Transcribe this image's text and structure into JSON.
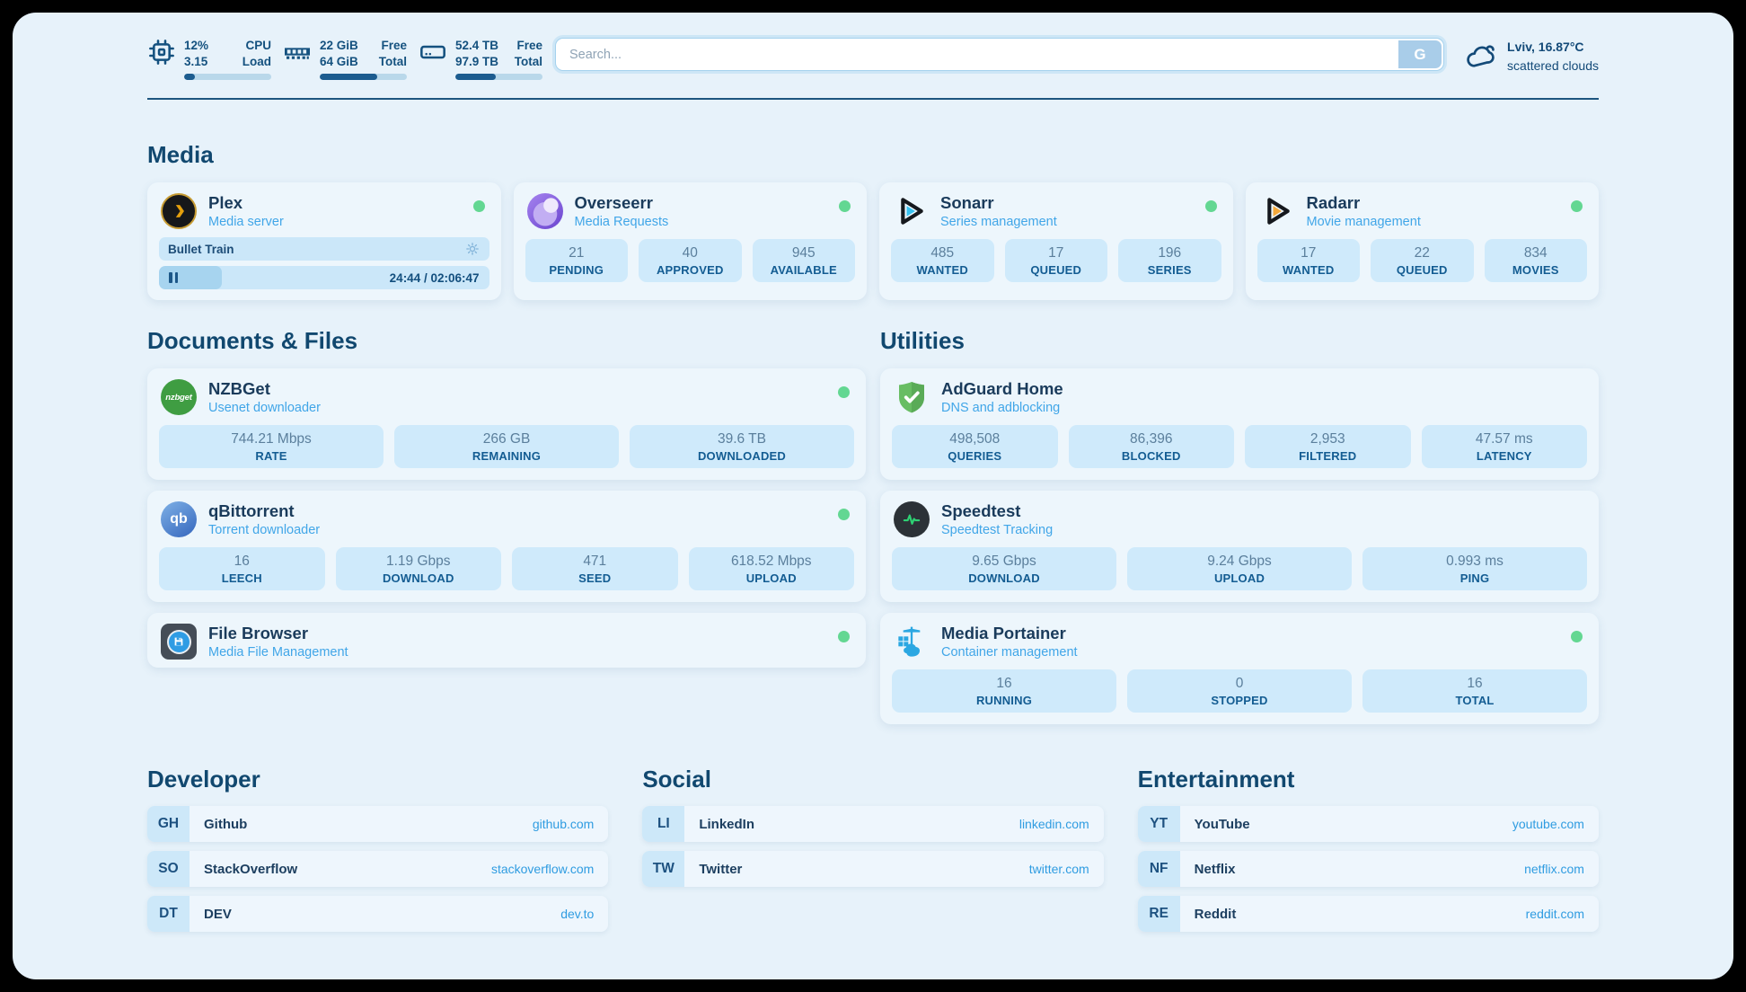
{
  "colors": {
    "accent": "#2f9ce1",
    "status_online": "#63d792",
    "header_text": "#14517f"
  },
  "header": {
    "stats": [
      {
        "icon": "cpu",
        "values": [
          "12%",
          "3.15"
        ],
        "labels": [
          "CPU",
          "Load"
        ],
        "progress_pct": 12
      },
      {
        "icon": "memory",
        "values": [
          "22 GiB",
          "64 GiB"
        ],
        "labels": [
          "Free",
          "Total"
        ],
        "progress_pct": 66
      },
      {
        "icon": "disk",
        "values": [
          "52.4 TB",
          "97.9 TB"
        ],
        "labels": [
          "Free",
          "Total"
        ],
        "progress_pct": 46
      }
    ],
    "search": {
      "placeholder": "Search...",
      "button_label": "G"
    },
    "weather": {
      "location": "Lviv, 16.87°C",
      "condition": "scattered clouds"
    }
  },
  "sections": {
    "media": {
      "title": "Media"
    },
    "documents": {
      "title": "Documents & Files"
    },
    "utilities": {
      "title": "Utilities"
    },
    "developer": {
      "title": "Developer"
    },
    "social": {
      "title": "Social"
    },
    "entertainment": {
      "title": "Entertainment"
    }
  },
  "apps": {
    "plex": {
      "name": "Plex",
      "subtitle": "Media server",
      "status": "online",
      "now_playing": "Bullet Train",
      "time_display": "24:44 / 02:06:47",
      "progress_pct": 19
    },
    "overseerr": {
      "name": "Overseerr",
      "subtitle": "Media Requests",
      "status": "online",
      "stats": [
        {
          "value": "21",
          "label": "PENDING"
        },
        {
          "value": "40",
          "label": "APPROVED"
        },
        {
          "value": "945",
          "label": "AVAILABLE"
        }
      ]
    },
    "sonarr": {
      "name": "Sonarr",
      "subtitle": "Series management",
      "status": "online",
      "stats": [
        {
          "value": "485",
          "label": "WANTED"
        },
        {
          "value": "17",
          "label": "QUEUED"
        },
        {
          "value": "196",
          "label": "SERIES"
        }
      ]
    },
    "radarr": {
      "name": "Radarr",
      "subtitle": "Movie management",
      "status": "online",
      "stats": [
        {
          "value": "17",
          "label": "WANTED"
        },
        {
          "value": "22",
          "label": "QUEUED"
        },
        {
          "value": "834",
          "label": "MOVIES"
        }
      ]
    },
    "nzbget": {
      "name": "NZBGet",
      "subtitle": "Usenet downloader",
      "status": "online",
      "icon_label": "nzbget",
      "stats": [
        {
          "value": "744.21 Mbps",
          "label": "RATE"
        },
        {
          "value": "266 GB",
          "label": "REMAINING"
        },
        {
          "value": "39.6 TB",
          "label": "DOWNLOADED"
        }
      ]
    },
    "qbittorrent": {
      "name": "qBittorrent",
      "subtitle": "Torrent downloader",
      "status": "online",
      "icon_label": "qb",
      "stats": [
        {
          "value": "16",
          "label": "LEECH"
        },
        {
          "value": "1.19 Gbps",
          "label": "DOWNLOAD"
        },
        {
          "value": "471",
          "label": "SEED"
        },
        {
          "value": "618.52 Mbps",
          "label": "UPLOAD"
        }
      ]
    },
    "filebrowser": {
      "name": "File Browser",
      "subtitle": "Media File Management",
      "status": "online"
    },
    "adguard": {
      "name": "AdGuard Home",
      "subtitle": "DNS and adblocking",
      "stats": [
        {
          "value": "498,508",
          "label": "QUERIES"
        },
        {
          "value": "86,396",
          "label": "BLOCKED"
        },
        {
          "value": "2,953",
          "label": "FILTERED"
        },
        {
          "value": "47.57 ms",
          "label": "LATENCY"
        }
      ]
    },
    "speedtest": {
      "name": "Speedtest",
      "subtitle": "Speedtest Tracking",
      "stats": [
        {
          "value": "9.65 Gbps",
          "label": "DOWNLOAD"
        },
        {
          "value": "9.24 Gbps",
          "label": "UPLOAD"
        },
        {
          "value": "0.993 ms",
          "label": "PING"
        }
      ]
    },
    "portainer": {
      "name": "Media Portainer",
      "subtitle": "Container management",
      "status": "online",
      "stats": [
        {
          "value": "16",
          "label": "RUNNING"
        },
        {
          "value": "0",
          "label": "STOPPED"
        },
        {
          "value": "16",
          "label": "TOTAL"
        }
      ]
    }
  },
  "links": {
    "developer": {
      "items": [
        {
          "abbr": "GH",
          "name": "Github",
          "url": "github.com"
        },
        {
          "abbr": "SO",
          "name": "StackOverflow",
          "url": "stackoverflow.com"
        },
        {
          "abbr": "DT",
          "name": "DEV",
          "url": "dev.to"
        }
      ]
    },
    "social": {
      "items": [
        {
          "abbr": "LI",
          "name": "LinkedIn",
          "url": "linkedin.com"
        },
        {
          "abbr": "TW",
          "name": "Twitter",
          "url": "twitter.com"
        }
      ]
    },
    "entertainment": {
      "items": [
        {
          "abbr": "YT",
          "name": "YouTube",
          "url": "youtube.com"
        },
        {
          "abbr": "NF",
          "name": "Netflix",
          "url": "netflix.com"
        },
        {
          "abbr": "RE",
          "name": "Reddit",
          "url": "reddit.com"
        }
      ]
    }
  }
}
